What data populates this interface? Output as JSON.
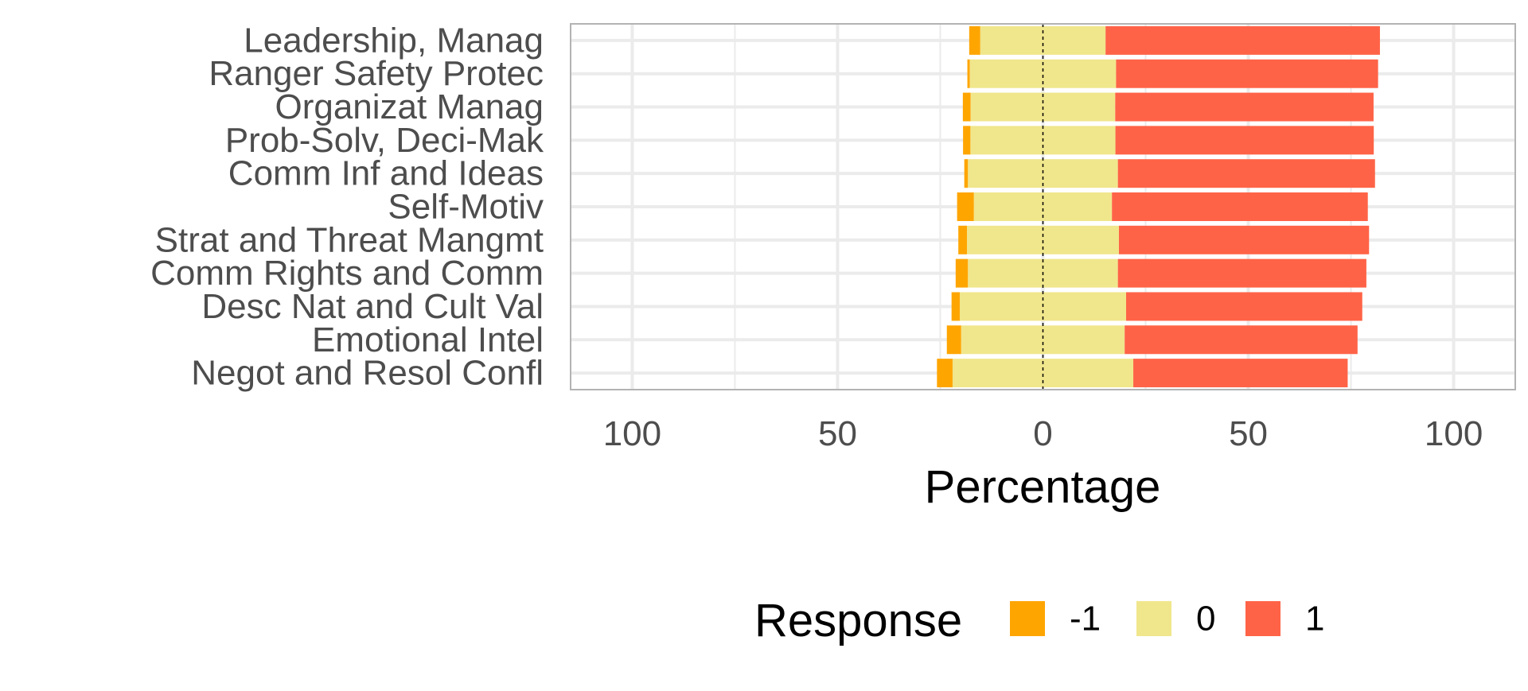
{
  "chart_data": {
    "type": "bar",
    "orientation": "horizontal",
    "stacked": "diverging",
    "title": "",
    "xlabel": "Percentage",
    "ylabel": "",
    "xlim": [
      -115,
      115
    ],
    "x_ticks": [
      -100,
      -50,
      0,
      50,
      100
    ],
    "x_tick_labels": [
      "100",
      "50",
      "0",
      "50",
      "100"
    ],
    "grid": true,
    "legend_position": "bottom",
    "legend_title": "Response",
    "categories": [
      "Leadership, Manag",
      "Ranger Safety Protec",
      "Organizat Manag",
      "Prob-Solv, Deci-Mak",
      "Comm Inf and Ideas",
      "Self-Motiv",
      "Strat and Threat Mangmt",
      "Comm Rights and Comm",
      "Desc Nat and Cult Val",
      "Emotional Intel",
      "Negot and Resol Confl"
    ],
    "series": [
      {
        "name": "-1",
        "color": "#FFA500",
        "values": [
          2.7,
          0.6,
          1.9,
          1.8,
          0.9,
          4.1,
          2.1,
          3.0,
          2.0,
          3.5,
          3.8
        ]
      },
      {
        "name": "0",
        "color": "#F0E68C",
        "values": [
          30.5,
          35.6,
          35.2,
          35.3,
          36.5,
          33.6,
          37.0,
          36.5,
          40.5,
          39.8,
          44.0
        ]
      },
      {
        "name": "1",
        "color": "#FF6347",
        "values": [
          66.8,
          63.8,
          62.9,
          62.9,
          62.6,
          62.3,
          60.9,
          60.5,
          57.5,
          56.7,
          52.2
        ]
      }
    ]
  }
}
